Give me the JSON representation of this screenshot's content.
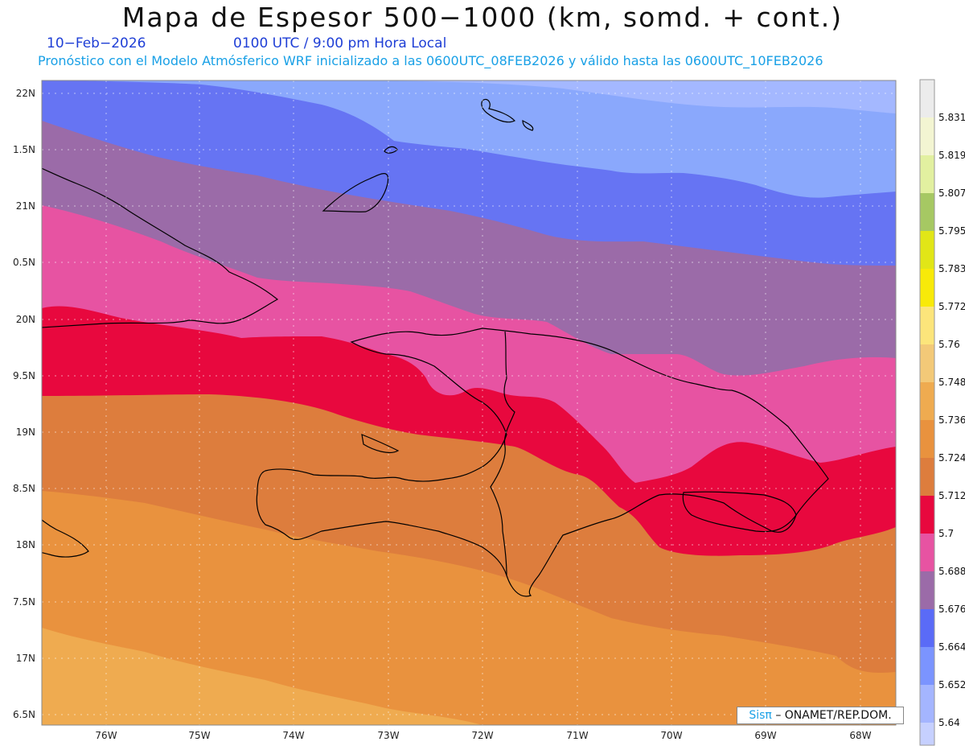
{
  "header": {
    "title": "Mapa de Espesor 500−1000 (km, somd. + cont.)",
    "date": "10−Feb−2026",
    "time": "0100 UTC / 9:00 pm Hora Local",
    "subtitle": "Pronóstico con el Modelo Atmósferico WRF inicializado a las 0600UTC_08FEB2026 y válido hasta las  0600UTC_10FEB2026"
  },
  "map": {
    "lat_labels": [
      "22N",
      "1.5N",
      "21N",
      "0.5N",
      "20N",
      "9.5N",
      "19N",
      "8.5N",
      "18N",
      "7.5N",
      "17N",
      "6.5N"
    ],
    "lon_labels": [
      "76W",
      "75W",
      "74W",
      "73W",
      "72W",
      "71W",
      "70W",
      "69W",
      "68W"
    ]
  },
  "legend": {
    "levels": [
      "5.831",
      "5.819",
      "5.807",
      "5.795",
      "5.783",
      "5.772",
      "5.76",
      "5.748",
      "5.736",
      "5.724",
      "5.712",
      "5.7",
      "5.688",
      "5.676",
      "5.664",
      "5.652",
      "5.64"
    ],
    "colors": [
      "#ececec",
      "#f3f5d2",
      "#e2f0a0",
      "#a6c863",
      "#e1e617",
      "#f8ea09",
      "#fce57b",
      "#f3c978",
      "#efab50",
      "#e9923e",
      "#dd7d3d",
      "#e8083e",
      "#e753a2",
      "#9b6ba8",
      "#5a6bf7",
      "#7b94ff",
      "#a4b5ff"
    ],
    "bottom_color": "#c6d0ff"
  },
  "credit": {
    "sis": "Sisπ",
    "org": "– ONAMET/REP.DOM."
  },
  "colors": {
    "band_lightblue": "#8aa8fc",
    "band_blue": "#6674f3",
    "band_purple": "#9b6ba8",
    "band_pink": "#e753a2",
    "band_red": "#e8083e",
    "band_orange_dark": "#dd7d3d",
    "band_orange": "#e9923e",
    "band_orange_light": "#efab50"
  }
}
